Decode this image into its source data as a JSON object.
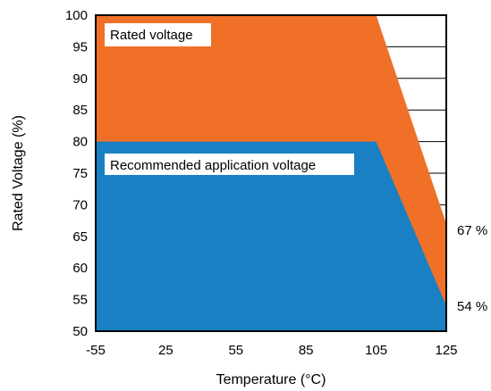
{
  "chart_data": {
    "type": "area",
    "title": "",
    "xlabel": "Temperature (°C)",
    "ylabel": "Rated Voltage (%)",
    "xlim": [
      -55,
      125
    ],
    "ylim": [
      50,
      100
    ],
    "x_tick_labels": [
      "-55",
      "25",
      "55",
      "85",
      "105",
      "125"
    ],
    "x_tick_values": [
      -55,
      25,
      55,
      85,
      105,
      125
    ],
    "y_tick_labels": [
      "100",
      "95",
      "90",
      "85",
      "80",
      "75",
      "70",
      "65",
      "60",
      "55",
      "50"
    ],
    "y_tick_values": [
      100,
      95,
      90,
      85,
      80,
      75,
      70,
      65,
      60,
      55,
      50
    ],
    "grid": {
      "horizontal": true,
      "vertical": false
    },
    "series": [
      {
        "name": "Rated voltage",
        "color": "#f07027",
        "x": [
          -55,
          105,
          125
        ],
        "y": [
          100,
          100,
          67
        ]
      },
      {
        "name": "Recommended application voltage",
        "color": "#1a80c4",
        "x": [
          -55,
          105,
          125
        ],
        "y": [
          80,
          80,
          54
        ]
      }
    ],
    "annotations": [
      {
        "text": "67 %",
        "x": 125,
        "y": 67
      },
      {
        "text": "54 %",
        "x": 125,
        "y": 54
      }
    ]
  }
}
